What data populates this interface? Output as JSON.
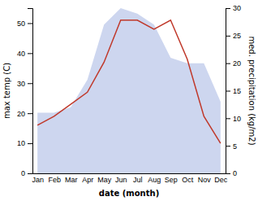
{
  "chart_data": {
    "type": "line",
    "categories": [
      "Jan",
      "Feb",
      "Mar",
      "Apr",
      "May",
      "Jun",
      "Jul",
      "Aug",
      "Sep",
      "Oct",
      "Nov",
      "Dec"
    ],
    "xlabel": "date (month)",
    "ylabel": "max temp (C)",
    "y2label": "med. precipitation (kg/m2)",
    "ylim": [
      0,
      55
    ],
    "yticks": [
      0,
      10,
      20,
      30,
      40,
      50
    ],
    "y2lim": [
      0,
      30
    ],
    "y2ticks": [
      0,
      5,
      10,
      15,
      20,
      25,
      30
    ],
    "series": [
      {
        "type": "area",
        "axis": "y2",
        "color": "#b8c4e8",
        "values": [
          11,
          11,
          12,
          17,
          27,
          30,
          29,
          27,
          21,
          20,
          20,
          13
        ]
      },
      {
        "type": "line",
        "color": "#c0392b",
        "values": [
          16,
          19,
          23,
          27,
          37,
          51,
          51,
          48,
          51,
          38,
          19,
          10
        ]
      }
    ]
  }
}
